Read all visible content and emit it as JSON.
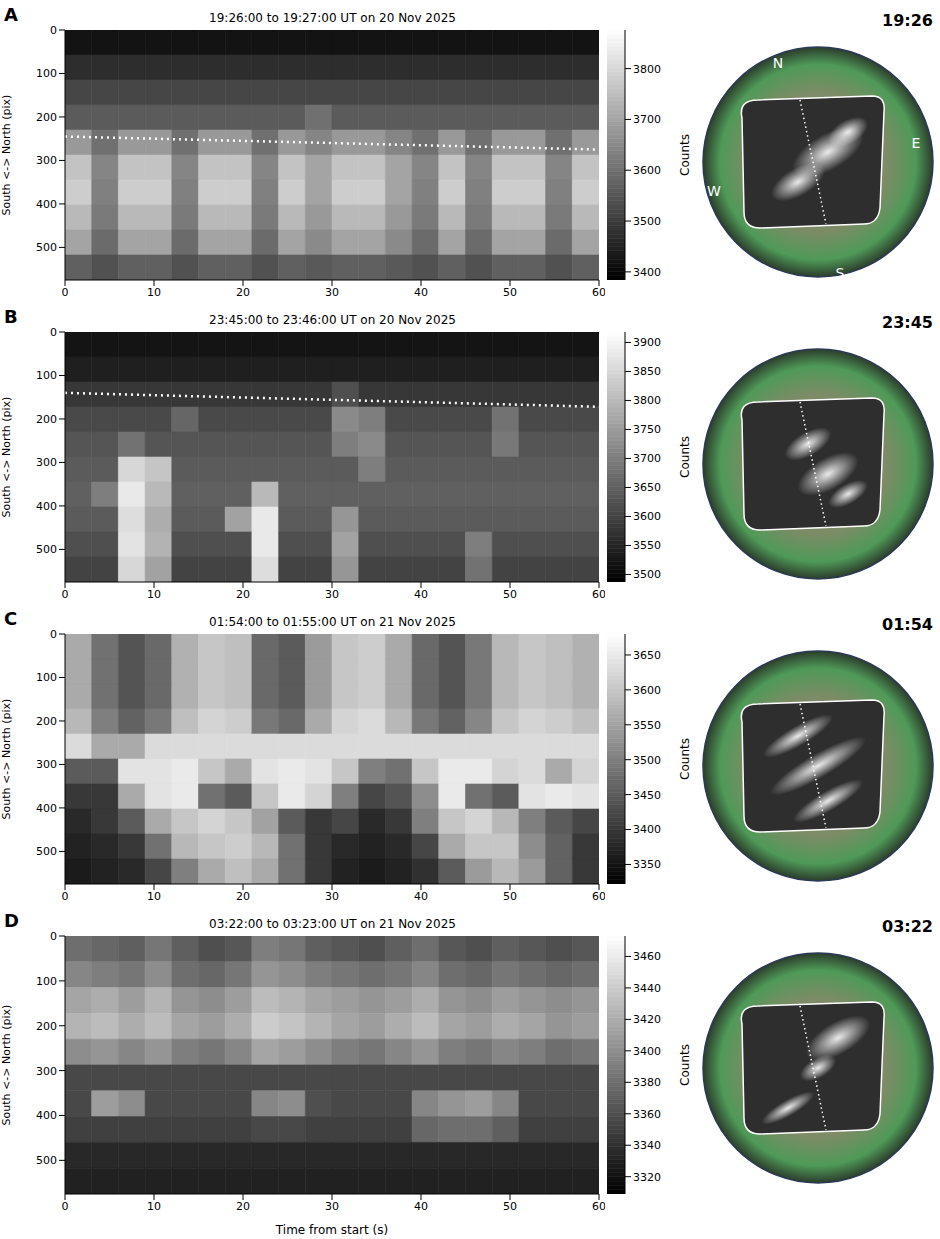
{
  "chart_data": [
    {
      "type": "heatmap",
      "panel": "A",
      "title": "19:26:00 to 19:27:00 UT on 20 Nov 2025",
      "ylabel": "South <-> North (pix)",
      "xlim": [
        0,
        60
      ],
      "xticks": [
        0,
        10,
        20,
        30,
        40,
        50,
        60
      ],
      "ylim": [
        575,
        0
      ],
      "yticks": [
        0,
        100,
        200,
        300,
        400,
        500
      ],
      "x_edges": [
        0,
        3,
        6,
        9,
        12,
        15,
        18,
        21,
        24,
        27,
        30,
        33,
        36,
        39,
        42,
        45,
        48,
        51,
        54,
        57,
        60
      ],
      "y_edges": [
        0,
        57.5,
        115,
        172.5,
        230,
        287.5,
        345,
        402.5,
        460,
        517.5,
        575
      ],
      "cells": [
        [
          3420,
          3420,
          3420,
          3420,
          3420,
          3420,
          3420,
          3420,
          3420,
          3420,
          3420,
          3420,
          3420,
          3420,
          3420,
          3420,
          3420,
          3420,
          3420,
          3420
        ],
        [
          3470,
          3470,
          3470,
          3470,
          3470,
          3470,
          3470,
          3470,
          3470,
          3470,
          3470,
          3470,
          3470,
          3470,
          3470,
          3470,
          3470,
          3470,
          3470,
          3470
        ],
        [
          3520,
          3520,
          3520,
          3520,
          3520,
          3520,
          3520,
          3520,
          3520,
          3520,
          3520,
          3520,
          3520,
          3520,
          3520,
          3520,
          3520,
          3520,
          3520,
          3520
        ],
        [
          3560,
          3560,
          3560,
          3560,
          3560,
          3560,
          3560,
          3560,
          3560,
          3600,
          3560,
          3560,
          3560,
          3560,
          3560,
          3560,
          3560,
          3560,
          3560,
          3560
        ],
        [
          3680,
          3600,
          3680,
          3680,
          3600,
          3680,
          3680,
          3600,
          3680,
          3640,
          3680,
          3680,
          3640,
          3600,
          3680,
          3600,
          3680,
          3680,
          3600,
          3680
        ],
        [
          3760,
          3640,
          3760,
          3760,
          3640,
          3760,
          3760,
          3640,
          3760,
          3700,
          3760,
          3760,
          3700,
          3640,
          3760,
          3640,
          3760,
          3760,
          3640,
          3760
        ],
        [
          3780,
          3630,
          3780,
          3780,
          3630,
          3780,
          3780,
          3630,
          3780,
          3700,
          3780,
          3780,
          3700,
          3630,
          3780,
          3630,
          3780,
          3780,
          3630,
          3780
        ],
        [
          3740,
          3620,
          3740,
          3740,
          3620,
          3740,
          3740,
          3620,
          3740,
          3680,
          3740,
          3740,
          3680,
          3620,
          3740,
          3620,
          3740,
          3740,
          3620,
          3740
        ],
        [
          3700,
          3590,
          3700,
          3700,
          3590,
          3700,
          3700,
          3590,
          3700,
          3650,
          3700,
          3700,
          3650,
          3590,
          3700,
          3590,
          3700,
          3700,
          3590,
          3700
        ],
        [
          3570,
          3540,
          3570,
          3570,
          3540,
          3570,
          3570,
          3540,
          3570,
          3555,
          3570,
          3570,
          3555,
          3540,
          3570,
          3540,
          3570,
          3570,
          3540,
          3570
        ]
      ],
      "colorbar": {
        "lim": [
          3384,
          3876
        ],
        "ticks": [
          3400,
          3500,
          3600,
          3700,
          3800
        ],
        "label": "Counts"
      },
      "dotted_line": {
        "x": [
          0,
          60
        ],
        "y": [
          245,
          275
        ],
        "line_style": "dotted"
      },
      "sky_image": {
        "time": "19:26",
        "compass": [
          "N",
          "E",
          "S",
          "W"
        ]
      }
    },
    {
      "type": "heatmap",
      "panel": "B",
      "title": "23:45:00 to 23:46:00 UT on 20 Nov 2025",
      "ylabel": "South <-> North (pix)",
      "xlim": [
        0,
        60
      ],
      "xticks": [
        0,
        10,
        20,
        30,
        40,
        50,
        60
      ],
      "ylim": [
        575,
        0
      ],
      "yticks": [
        0,
        100,
        200,
        300,
        400,
        500
      ],
      "x_edges": [
        0,
        3,
        6,
        9,
        12,
        15,
        18,
        21,
        24,
        27,
        30,
        33,
        36,
        39,
        42,
        45,
        48,
        51,
        54,
        57,
        60
      ],
      "y_edges": [
        0,
        57.5,
        115,
        172.5,
        230,
        287.5,
        345,
        402.5,
        460,
        517.5,
        575
      ],
      "cells": [
        [
          3520,
          3520,
          3520,
          3520,
          3520,
          3520,
          3520,
          3520,
          3520,
          3520,
          3520,
          3520,
          3520,
          3520,
          3520,
          3520,
          3520,
          3520,
          3520,
          3520
        ],
        [
          3540,
          3540,
          3540,
          3540,
          3540,
          3540,
          3540,
          3540,
          3540,
          3540,
          3540,
          3540,
          3540,
          3540,
          3540,
          3540,
          3540,
          3540,
          3540,
          3540
        ],
        [
          3580,
          3580,
          3580,
          3580,
          3580,
          3580,
          3580,
          3580,
          3580,
          3580,
          3620,
          3580,
          3580,
          3580,
          3580,
          3580,
          3580,
          3580,
          3580,
          3580
        ],
        [
          3610,
          3610,
          3610,
          3610,
          3660,
          3610,
          3610,
          3610,
          3610,
          3610,
          3720,
          3700,
          3610,
          3610,
          3610,
          3610,
          3680,
          3610,
          3610,
          3610
        ],
        [
          3630,
          3630,
          3680,
          3630,
          3630,
          3630,
          3630,
          3630,
          3630,
          3630,
          3700,
          3720,
          3630,
          3630,
          3630,
          3630,
          3690,
          3630,
          3630,
          3630
        ],
        [
          3640,
          3640,
          3850,
          3820,
          3640,
          3640,
          3640,
          3640,
          3640,
          3640,
          3640,
          3700,
          3640,
          3640,
          3640,
          3640,
          3640,
          3640,
          3640,
          3640
        ],
        [
          3650,
          3700,
          3880,
          3800,
          3650,
          3650,
          3650,
          3800,
          3650,
          3650,
          3650,
          3650,
          3650,
          3650,
          3650,
          3650,
          3650,
          3650,
          3650,
          3650
        ],
        [
          3640,
          3640,
          3860,
          3780,
          3640,
          3640,
          3760,
          3880,
          3640,
          3640,
          3740,
          3640,
          3640,
          3640,
          3640,
          3640,
          3640,
          3640,
          3640,
          3640
        ],
        [
          3620,
          3620,
          3870,
          3790,
          3620,
          3620,
          3620,
          3880,
          3620,
          3620,
          3760,
          3620,
          3620,
          3620,
          3620,
          3700,
          3620,
          3620,
          3620,
          3620
        ],
        [
          3600,
          3600,
          3850,
          3760,
          3600,
          3600,
          3600,
          3860,
          3600,
          3600,
          3740,
          3600,
          3600,
          3600,
          3600,
          3680,
          3600,
          3600,
          3600,
          3600
        ]
      ],
      "colorbar": {
        "lim": [
          3487,
          3918
        ],
        "ticks": [
          3500,
          3550,
          3600,
          3650,
          3700,
          3750,
          3800,
          3850,
          3900
        ],
        "label": "Counts"
      },
      "dotted_line": {
        "x": [
          0,
          60
        ],
        "y": [
          140,
          172
        ],
        "line_style": "dotted"
      },
      "sky_image": {
        "time": "23:45"
      }
    },
    {
      "type": "heatmap",
      "panel": "C",
      "title": "01:54:00 to 01:55:00 UT on 21 Nov 2025",
      "ylabel": "South <-> North (pix)",
      "xlim": [
        0,
        60
      ],
      "xticks": [
        0,
        10,
        20,
        30,
        40,
        50,
        60
      ],
      "ylim": [
        575,
        0
      ],
      "yticks": [
        0,
        100,
        200,
        300,
        400,
        500
      ],
      "x_edges": [
        0,
        3,
        6,
        9,
        12,
        15,
        18,
        21,
        24,
        27,
        30,
        33,
        36,
        39,
        42,
        45,
        48,
        51,
        54,
        57,
        60
      ],
      "y_edges": [
        0,
        57.5,
        115,
        172.5,
        230,
        287.5,
        345,
        402.5,
        460,
        517.5,
        575
      ],
      "cells": [
        [
          3560,
          3480,
          3440,
          3470,
          3570,
          3600,
          3590,
          3470,
          3450,
          3540,
          3600,
          3610,
          3560,
          3470,
          3440,
          3490,
          3580,
          3600,
          3590,
          3570
        ],
        [
          3560,
          3480,
          3440,
          3470,
          3570,
          3600,
          3590,
          3470,
          3450,
          3540,
          3600,
          3610,
          3560,
          3470,
          3440,
          3490,
          3580,
          3600,
          3590,
          3570
        ],
        [
          3560,
          3480,
          3440,
          3470,
          3570,
          3600,
          3590,
          3470,
          3450,
          3540,
          3600,
          3610,
          3560,
          3470,
          3440,
          3490,
          3580,
          3600,
          3590,
          3570
        ],
        [
          3580,
          3500,
          3460,
          3490,
          3590,
          3620,
          3610,
          3490,
          3470,
          3560,
          3620,
          3630,
          3580,
          3490,
          3460,
          3510,
          3600,
          3620,
          3610,
          3590
        ],
        [
          3630,
          3560,
          3560,
          3630,
          3630,
          3630,
          3630,
          3630,
          3630,
          3630,
          3630,
          3630,
          3630,
          3630,
          3630,
          3630,
          3630,
          3630,
          3630,
          3630
        ],
        [
          3450,
          3450,
          3640,
          3640,
          3650,
          3600,
          3560,
          3640,
          3650,
          3640,
          3600,
          3500,
          3480,
          3600,
          3650,
          3650,
          3620,
          3630,
          3560,
          3620
        ],
        [
          3400,
          3400,
          3560,
          3640,
          3650,
          3480,
          3450,
          3600,
          3650,
          3620,
          3500,
          3420,
          3440,
          3520,
          3650,
          3480,
          3450,
          3640,
          3650,
          3640
        ],
        [
          3380,
          3400,
          3450,
          3560,
          3600,
          3620,
          3600,
          3550,
          3450,
          3400,
          3420,
          3380,
          3400,
          3500,
          3600,
          3620,
          3580,
          3500,
          3450,
          3420
        ],
        [
          3370,
          3380,
          3400,
          3480,
          3580,
          3600,
          3610,
          3580,
          3480,
          3400,
          3380,
          3370,
          3380,
          3420,
          3560,
          3600,
          3600,
          3520,
          3460,
          3400
        ],
        [
          3360,
          3370,
          3380,
          3420,
          3500,
          3560,
          3590,
          3560,
          3480,
          3400,
          3370,
          3360,
          3370,
          3390,
          3450,
          3540,
          3580,
          3540,
          3460,
          3400
        ]
      ],
      "colorbar": {
        "lim": [
          3322,
          3680
        ],
        "ticks": [
          3350,
          3400,
          3450,
          3500,
          3550,
          3600,
          3650
        ],
        "label": "Counts"
      },
      "sky_image": {
        "time": "01:54"
      }
    },
    {
      "type": "heatmap",
      "panel": "D",
      "title": "03:22:00 to 03:23:00 UT on 21 Nov 2025",
      "xlabel": "Time from start (s)",
      "ylabel": "South <-> North (pix)",
      "xlim": [
        0,
        60
      ],
      "xticks": [
        0,
        10,
        20,
        30,
        40,
        50,
        60
      ],
      "ylim": [
        575,
        0
      ],
      "yticks": [
        0,
        100,
        200,
        300,
        400,
        500
      ],
      "x_edges": [
        0,
        3,
        6,
        9,
        12,
        15,
        18,
        21,
        24,
        27,
        30,
        33,
        36,
        39,
        42,
        45,
        48,
        51,
        54,
        57,
        60
      ],
      "y_edges": [
        0,
        57.5,
        115,
        172.5,
        230,
        287.5,
        345,
        402.5,
        460,
        517.5,
        575
      ],
      "cells": [
        [
          3380,
          3375,
          3370,
          3385,
          3370,
          3360,
          3365,
          3390,
          3385,
          3370,
          3365,
          3360,
          3370,
          3380,
          3365,
          3360,
          3370,
          3365,
          3360,
          3365
        ],
        [
          3395,
          3390,
          3385,
          3400,
          3380,
          3375,
          3385,
          3405,
          3400,
          3390,
          3385,
          3380,
          3385,
          3395,
          3380,
          3375,
          3385,
          3380,
          3375,
          3380
        ],
        [
          3415,
          3420,
          3410,
          3425,
          3405,
          3400,
          3410,
          3430,
          3425,
          3415,
          3410,
          3405,
          3410,
          3420,
          3405,
          3400,
          3410,
          3405,
          3400,
          3405
        ],
        [
          3425,
          3430,
          3420,
          3430,
          3415,
          3410,
          3420,
          3440,
          3435,
          3425,
          3415,
          3410,
          3420,
          3430,
          3415,
          3410,
          3420,
          3415,
          3405,
          3410
        ],
        [
          3400,
          3405,
          3395,
          3405,
          3390,
          3385,
          3395,
          3415,
          3410,
          3400,
          3390,
          3385,
          3395,
          3405,
          3390,
          3385,
          3395,
          3390,
          3380,
          3385
        ],
        [
          3355,
          3355,
          3355,
          3355,
          3355,
          3355,
          3355,
          3355,
          3355,
          3355,
          3355,
          3355,
          3355,
          3355,
          3355,
          3355,
          3355,
          3355,
          3355,
          3355
        ],
        [
          3355,
          3410,
          3400,
          3355,
          3355,
          3355,
          3355,
          3395,
          3400,
          3360,
          3355,
          3355,
          3355,
          3395,
          3405,
          3410,
          3395,
          3355,
          3355,
          3355
        ],
        [
          3350,
          3350,
          3350,
          3350,
          3350,
          3350,
          3350,
          3355,
          3355,
          3350,
          3350,
          3350,
          3350,
          3375,
          3380,
          3380,
          3370,
          3350,
          3350,
          3350
        ],
        [
          3335,
          3335,
          3335,
          3335,
          3335,
          3335,
          3335,
          3335,
          3335,
          3335,
          3335,
          3335,
          3335,
          3335,
          3335,
          3335,
          3335,
          3335,
          3335,
          3335
        ],
        [
          3330,
          3330,
          3330,
          3330,
          3330,
          3330,
          3330,
          3330,
          3330,
          3330,
          3330,
          3330,
          3330,
          3330,
          3330,
          3330,
          3330,
          3330,
          3330,
          3330
        ]
      ],
      "colorbar": {
        "lim": [
          3309,
          3473
        ],
        "ticks": [
          3320,
          3340,
          3360,
          3380,
          3400,
          3420,
          3440,
          3460
        ],
        "label": "Counts"
      },
      "sky_image": {
        "time": "03:22"
      }
    }
  ]
}
